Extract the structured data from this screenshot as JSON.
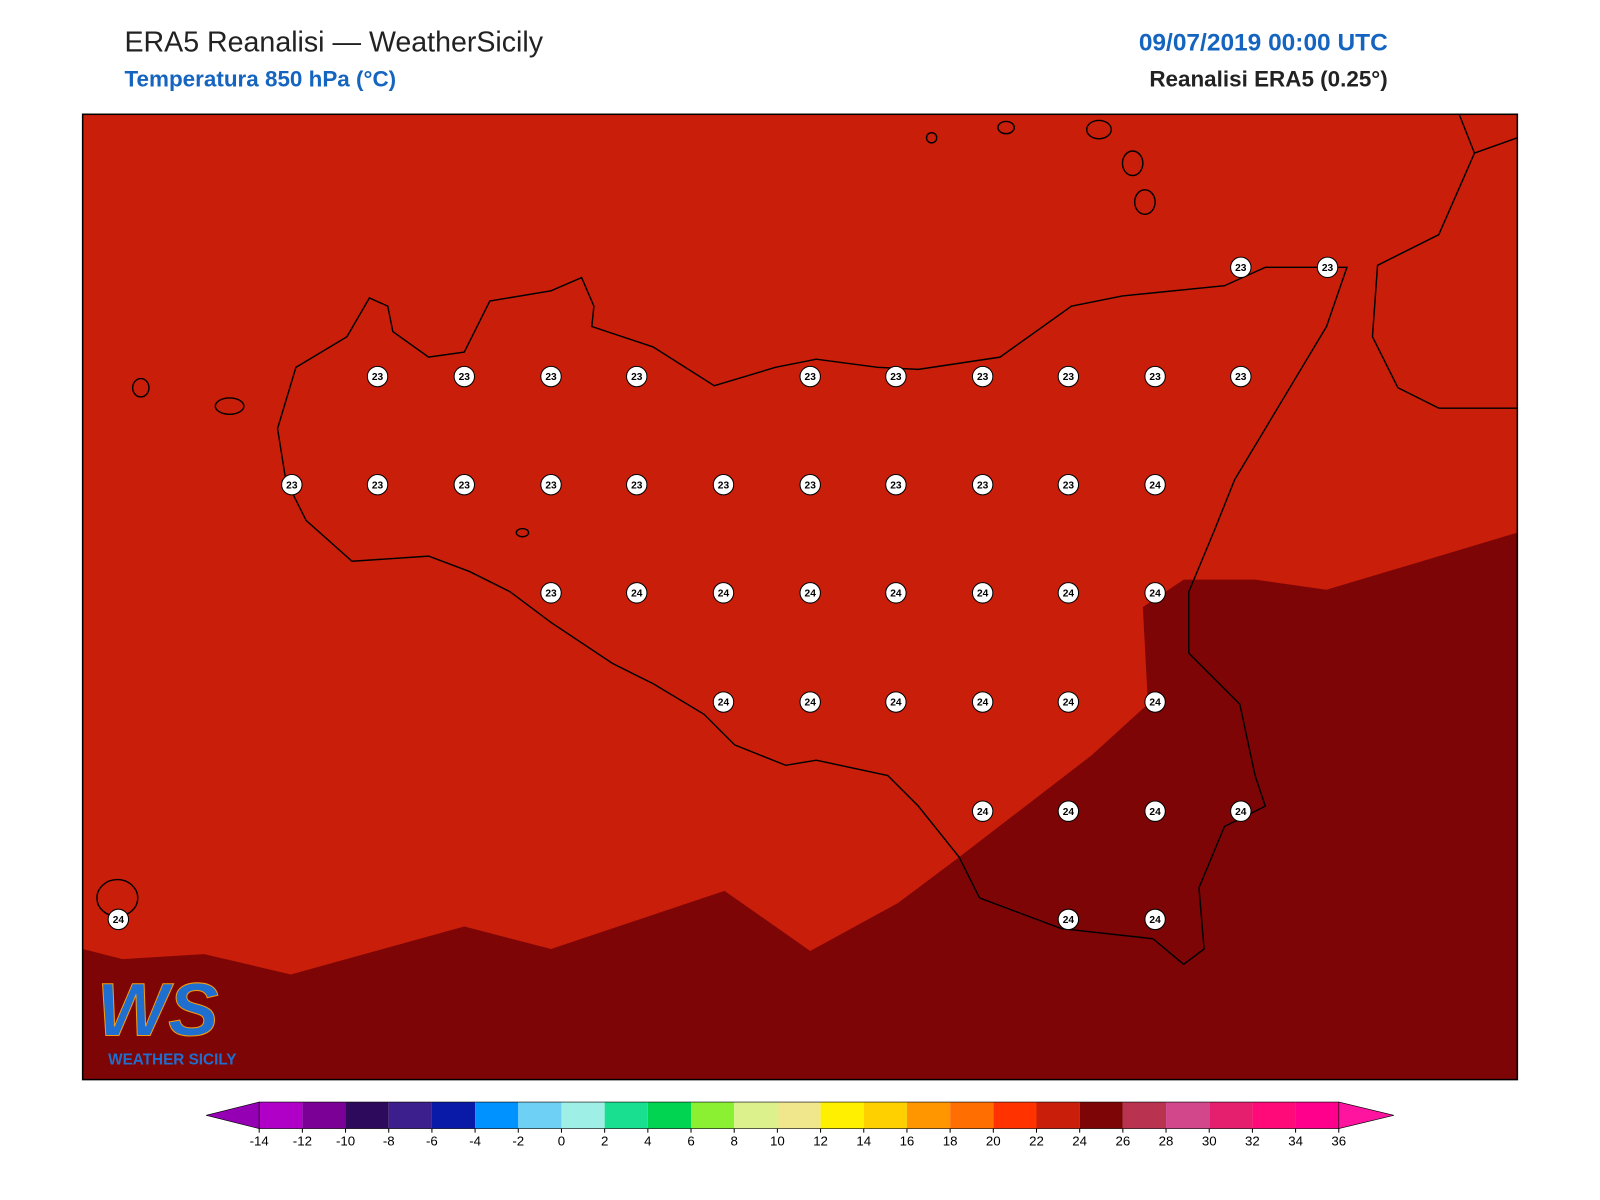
{
  "header": {
    "title": "ERA5 Reanalisi — WeatherSicily",
    "subtitle": "Temperatura 850 hPa (°C)",
    "date": "09/07/2019 00:00 UTC",
    "source": "Reanalisi ERA5 (0.25°)"
  },
  "map": {
    "grid_labels": [
      23,
      23,
      23,
      23,
      23,
      23,
      23,
      23,
      23,
      23,
      23,
      23,
      23,
      23,
      23,
      23,
      23,
      23,
      23,
      23,
      23,
      23,
      24,
      23,
      24,
      24,
      24,
      24,
      24,
      24,
      24,
      24,
      24,
      24,
      24,
      24,
      24,
      24,
      24,
      24,
      24,
      24,
      24,
      24
    ],
    "fill_colors": {
      "22": "#c81e0a",
      "24": "#7d0505"
    }
  },
  "logo": {
    "mark": "WS",
    "text": "WEATHER SICILY"
  },
  "colorbar": {
    "ticks": [
      -14,
      -12,
      -10,
      -8,
      -6,
      -4,
      -2,
      0,
      2,
      4,
      6,
      8,
      10,
      12,
      14,
      16,
      18,
      20,
      22,
      24,
      26,
      28,
      30,
      32,
      34,
      36
    ],
    "colors": [
      "#b000c8",
      "#7b0096",
      "#2e0a5c",
      "#3c1f8c",
      "#0a1aa8",
      "#0092ff",
      "#6fd0f5",
      "#9ef0e6",
      "#19e090",
      "#00d450",
      "#8cf032",
      "#dcf08c",
      "#f0e68c",
      "#fff000",
      "#ffd000",
      "#ff9600",
      "#ff6e00",
      "#ff3200",
      "#c81e0a",
      "#7d0505",
      "#b93250",
      "#d2468c",
      "#e61e6e",
      "#ff0a78",
      "#ff008c"
    ],
    "under_color": "#9600b4",
    "over_color": "#ff14a0"
  }
}
